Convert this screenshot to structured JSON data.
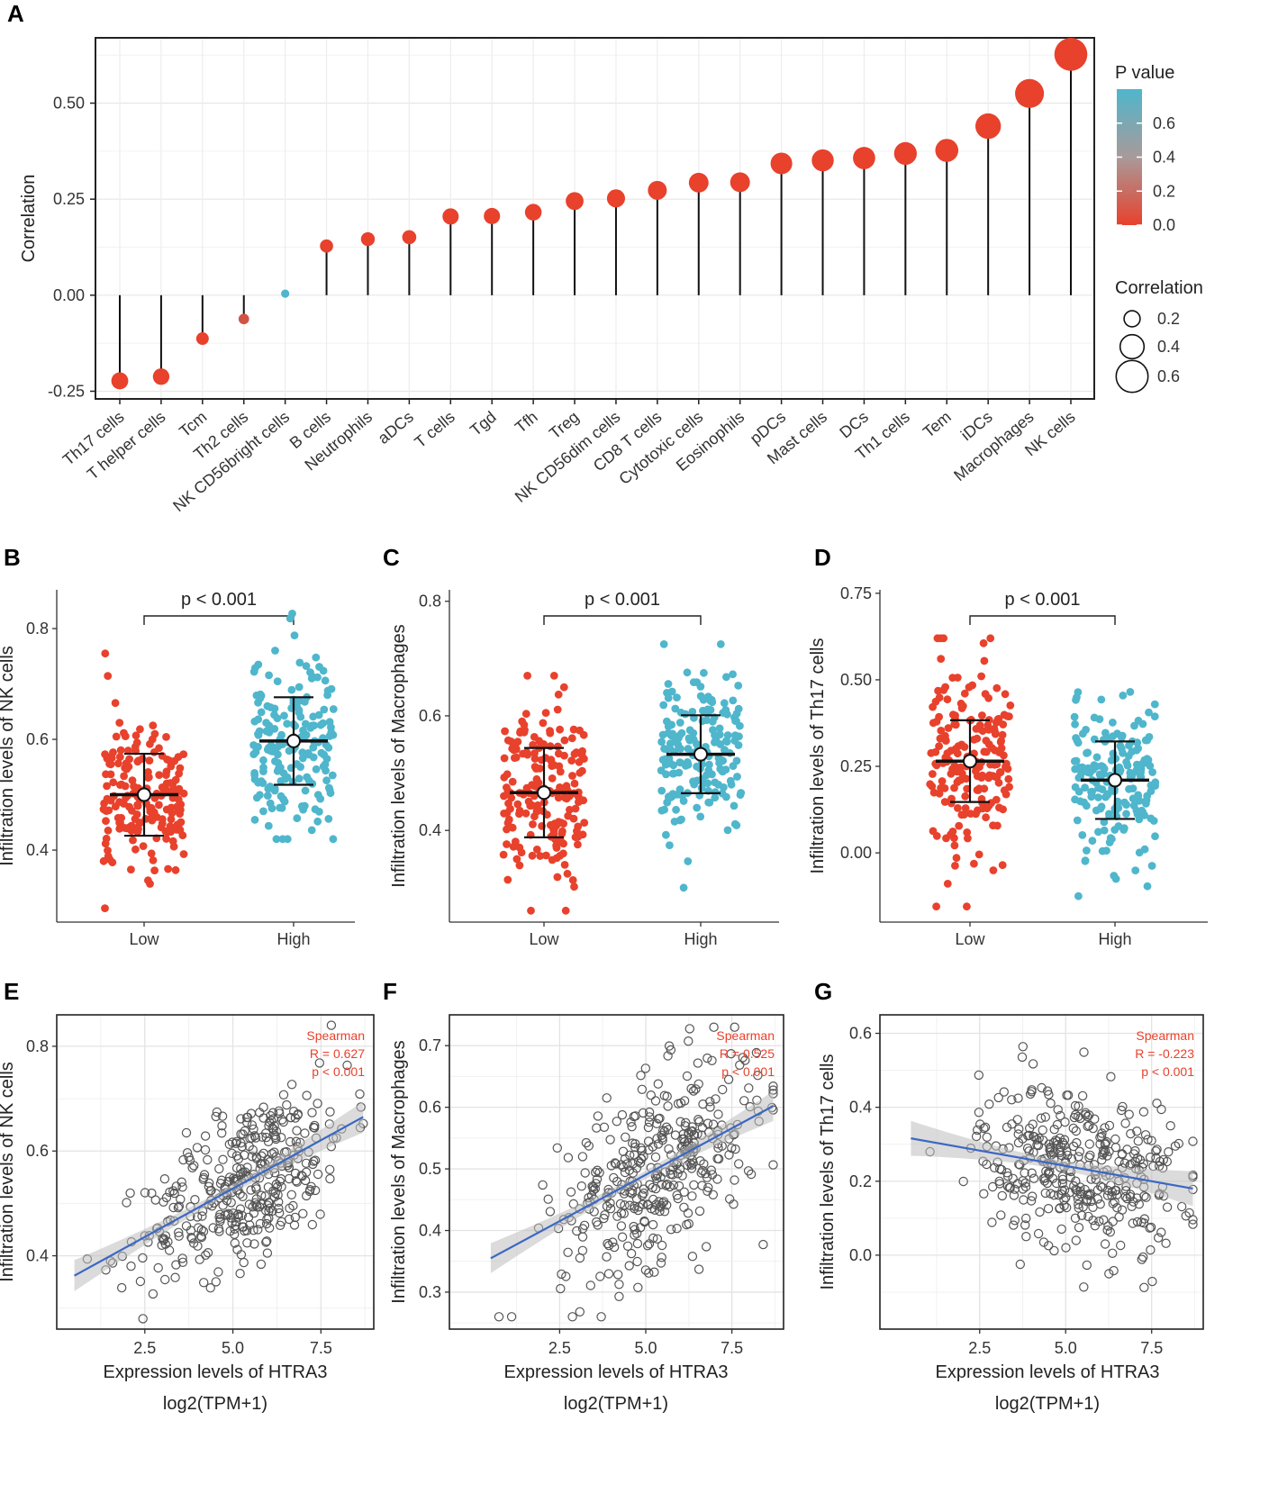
{
  "panel_labels": [
    "A",
    "B",
    "C",
    "D",
    "E",
    "F",
    "G"
  ],
  "chart_data": [
    {
      "id": "A",
      "type": "lollipop",
      "ylabel": "Correlation",
      "yticks": [
        -0.25,
        0.0,
        0.25,
        0.5
      ],
      "ytick_labels": [
        "-0.25",
        "0.00",
        "0.25",
        "0.50"
      ],
      "ylim": [
        -0.27,
        0.67
      ],
      "categories": [
        "Th17 cells",
        "T helper cells",
        "Tcm",
        "Th2 cells",
        "NK CD56bright cells",
        "B cells",
        "Neutrophils",
        "aDCs",
        "T cells",
        "Tgd",
        "Tfh",
        "Treg",
        "NK CD56dim cells",
        "CD8 T cells",
        "Cytotoxic cells",
        "Eosinophils",
        "pDCs",
        "Mast cells",
        "DCs",
        "Th1 cells",
        "Tem",
        "iDCs",
        "Macrophages",
        "NK cells"
      ],
      "correlation": [
        -0.223,
        -0.212,
        -0.113,
        -0.062,
        0.004,
        0.128,
        0.146,
        0.151,
        0.205,
        0.206,
        0.216,
        0.245,
        0.252,
        0.273,
        0.293,
        0.294,
        0.343,
        0.351,
        0.357,
        0.369,
        0.377,
        0.44,
        0.525,
        0.627
      ],
      "p_value": [
        0.0,
        0.0,
        0.002,
        0.12,
        0.8,
        0.001,
        0.0,
        0.0,
        0.0,
        0.0,
        0.0,
        0.0,
        0.0,
        0.0,
        0.0,
        0.0,
        0.0,
        0.0,
        0.0,
        0.0,
        0.0,
        0.0,
        0.0,
        0.0
      ],
      "legend": {
        "p_title": "P value",
        "p_ticks": [
          "0.6",
          "0.4",
          "0.2",
          "0.0"
        ],
        "p_tick_values": [
          0.6,
          0.4,
          0.2,
          0.0
        ],
        "p_range": [
          0.0,
          0.8
        ],
        "p_color_low": "#e8412c",
        "p_color_high": "#4fb6cc",
        "size_title": "Correlation",
        "size_ticks": [
          "0.2",
          "0.4",
          "0.6"
        ],
        "size_values": [
          0.2,
          0.4,
          0.6
        ]
      }
    },
    {
      "id": "B",
      "type": "scatter",
      "ylabel": "Infiltration levels of NK cells",
      "categories": [
        "Low",
        "High"
      ],
      "ylim": [
        0.27,
        0.87
      ],
      "yticks": [
        0.4,
        0.6,
        0.8
      ],
      "ytick_labels": [
        "0.4",
        "0.6",
        "0.8"
      ],
      "pvalue_text": "p < 0.001",
      "groups": [
        {
          "name": "Low",
          "mean": 0.5,
          "sd": 0.074,
          "min": 0.295,
          "max": 0.755,
          "color": "#e8412c",
          "n": 190
        },
        {
          "name": "High",
          "mean": 0.597,
          "sd": 0.079,
          "min": 0.42,
          "max": 0.827,
          "color": "#4fb6cc",
          "n": 190
        }
      ]
    },
    {
      "id": "C",
      "type": "scatter",
      "ylabel": "Infiltration levels of Macrophages",
      "categories": [
        "Low",
        "High"
      ],
      "ylim": [
        0.24,
        0.82
      ],
      "yticks": [
        0.4,
        0.6,
        0.8
      ],
      "ytick_labels": [
        "0.4",
        "0.6",
        "0.8"
      ],
      "pvalue_text": "p < 0.001",
      "groups": [
        {
          "name": "Low",
          "mean": 0.466,
          "sd": 0.078,
          "min": 0.26,
          "max": 0.67,
          "color": "#e8412c",
          "n": 190
        },
        {
          "name": "High",
          "mean": 0.533,
          "sd": 0.068,
          "min": 0.3,
          "max": 0.725,
          "color": "#4fb6cc",
          "n": 190
        }
      ]
    },
    {
      "id": "D",
      "type": "scatter",
      "ylabel": "Infiltration levels of Th17 cells",
      "categories": [
        "Low",
        "High"
      ],
      "ylim": [
        -0.2,
        0.76
      ],
      "yticks": [
        0.0,
        0.25,
        0.5,
        0.75
      ],
      "ytick_labels": [
        "0.00",
        "0.25",
        "0.50",
        "0.75"
      ],
      "pvalue_text": "p < 0.001",
      "groups": [
        {
          "name": "Low",
          "mean": 0.265,
          "sd": 0.118,
          "min": -0.155,
          "max": 0.62,
          "color": "#e8412c",
          "n": 190
        },
        {
          "name": "High",
          "mean": 0.21,
          "sd": 0.112,
          "min": -0.125,
          "max": 0.465,
          "color": "#4fb6cc",
          "n": 190
        }
      ]
    },
    {
      "id": "E",
      "type": "scatter",
      "xlabel": "Expression levels of HTRA3",
      "xlabel2": "log2(TPM+1)",
      "ylabel": "Infiltration levels of NK cells",
      "xlim": [
        0.0,
        9.0
      ],
      "ylim": [
        0.26,
        0.86
      ],
      "xticks": [
        2.5,
        5.0,
        7.5
      ],
      "xtick_labels": [
        "2.5",
        "5.0",
        "7.5"
      ],
      "yticks": [
        0.4,
        0.6,
        0.8
      ],
      "ytick_labels": [
        "0.4",
        "0.6",
        "0.8"
      ],
      "fit": {
        "x0": 0.5,
        "y0": 0.362,
        "x1": 8.7,
        "y1": 0.665,
        "band": 0.022
      },
      "stats": {
        "method": "Spearman",
        "r_text": "R = 0.627",
        "p_text": "p < 0.001"
      },
      "n_points": 380,
      "x_mean": 5.4,
      "x_sd": 1.45,
      "resid_sd": 0.075
    },
    {
      "id": "F",
      "type": "scatter",
      "xlabel": "Expression levels of HTRA3",
      "xlabel2": "log2(TPM+1)",
      "ylabel": "Infiltration levels of Macrophages",
      "xlim": [
        -0.7,
        9.0
      ],
      "ylim": [
        0.24,
        0.75
      ],
      "xticks": [
        2.5,
        5.0,
        7.5
      ],
      "xtick_labels": [
        "2.5",
        "5.0",
        "7.5"
      ],
      "yticks": [
        0.3,
        0.4,
        0.5,
        0.6,
        0.7
      ],
      "ytick_labels": [
        "0.3",
        "0.4",
        "0.5",
        "0.6",
        "0.7"
      ],
      "fit": {
        "x0": 0.5,
        "y0": 0.355,
        "x1": 8.7,
        "y1": 0.602,
        "band": 0.018
      },
      "stats": {
        "method": "Spearman",
        "r_text": "R = 0.525",
        "p_text": "p < 0.001"
      },
      "n_points": 380,
      "x_mean": 5.4,
      "x_sd": 1.45,
      "resid_sd": 0.075
    },
    {
      "id": "G",
      "type": "scatter",
      "xlabel": "Expression levels of HTRA3",
      "xlabel2": "log2(TPM+1)",
      "ylabel": "Infiltration levels of Th17 cells",
      "xlim": [
        -0.4,
        9.0
      ],
      "ylim": [
        -0.2,
        0.65
      ],
      "xticks": [
        2.5,
        5.0,
        7.5
      ],
      "xtick_labels": [
        "2.5",
        "5.0",
        "7.5"
      ],
      "yticks": [
        0.0,
        0.2,
        0.4,
        0.6
      ],
      "ytick_labels": [
        "0.0",
        "0.2",
        "0.4",
        "0.6"
      ],
      "fit": {
        "x0": 0.5,
        "y0": 0.316,
        "x1": 8.7,
        "y1": 0.18,
        "band": 0.035
      },
      "stats": {
        "method": "Spearman",
        "r_text": "R = -0.223",
        "p_text": "p < 0.001"
      },
      "n_points": 380,
      "x_mean": 5.4,
      "x_sd": 1.45,
      "resid_sd": 0.11
    }
  ]
}
